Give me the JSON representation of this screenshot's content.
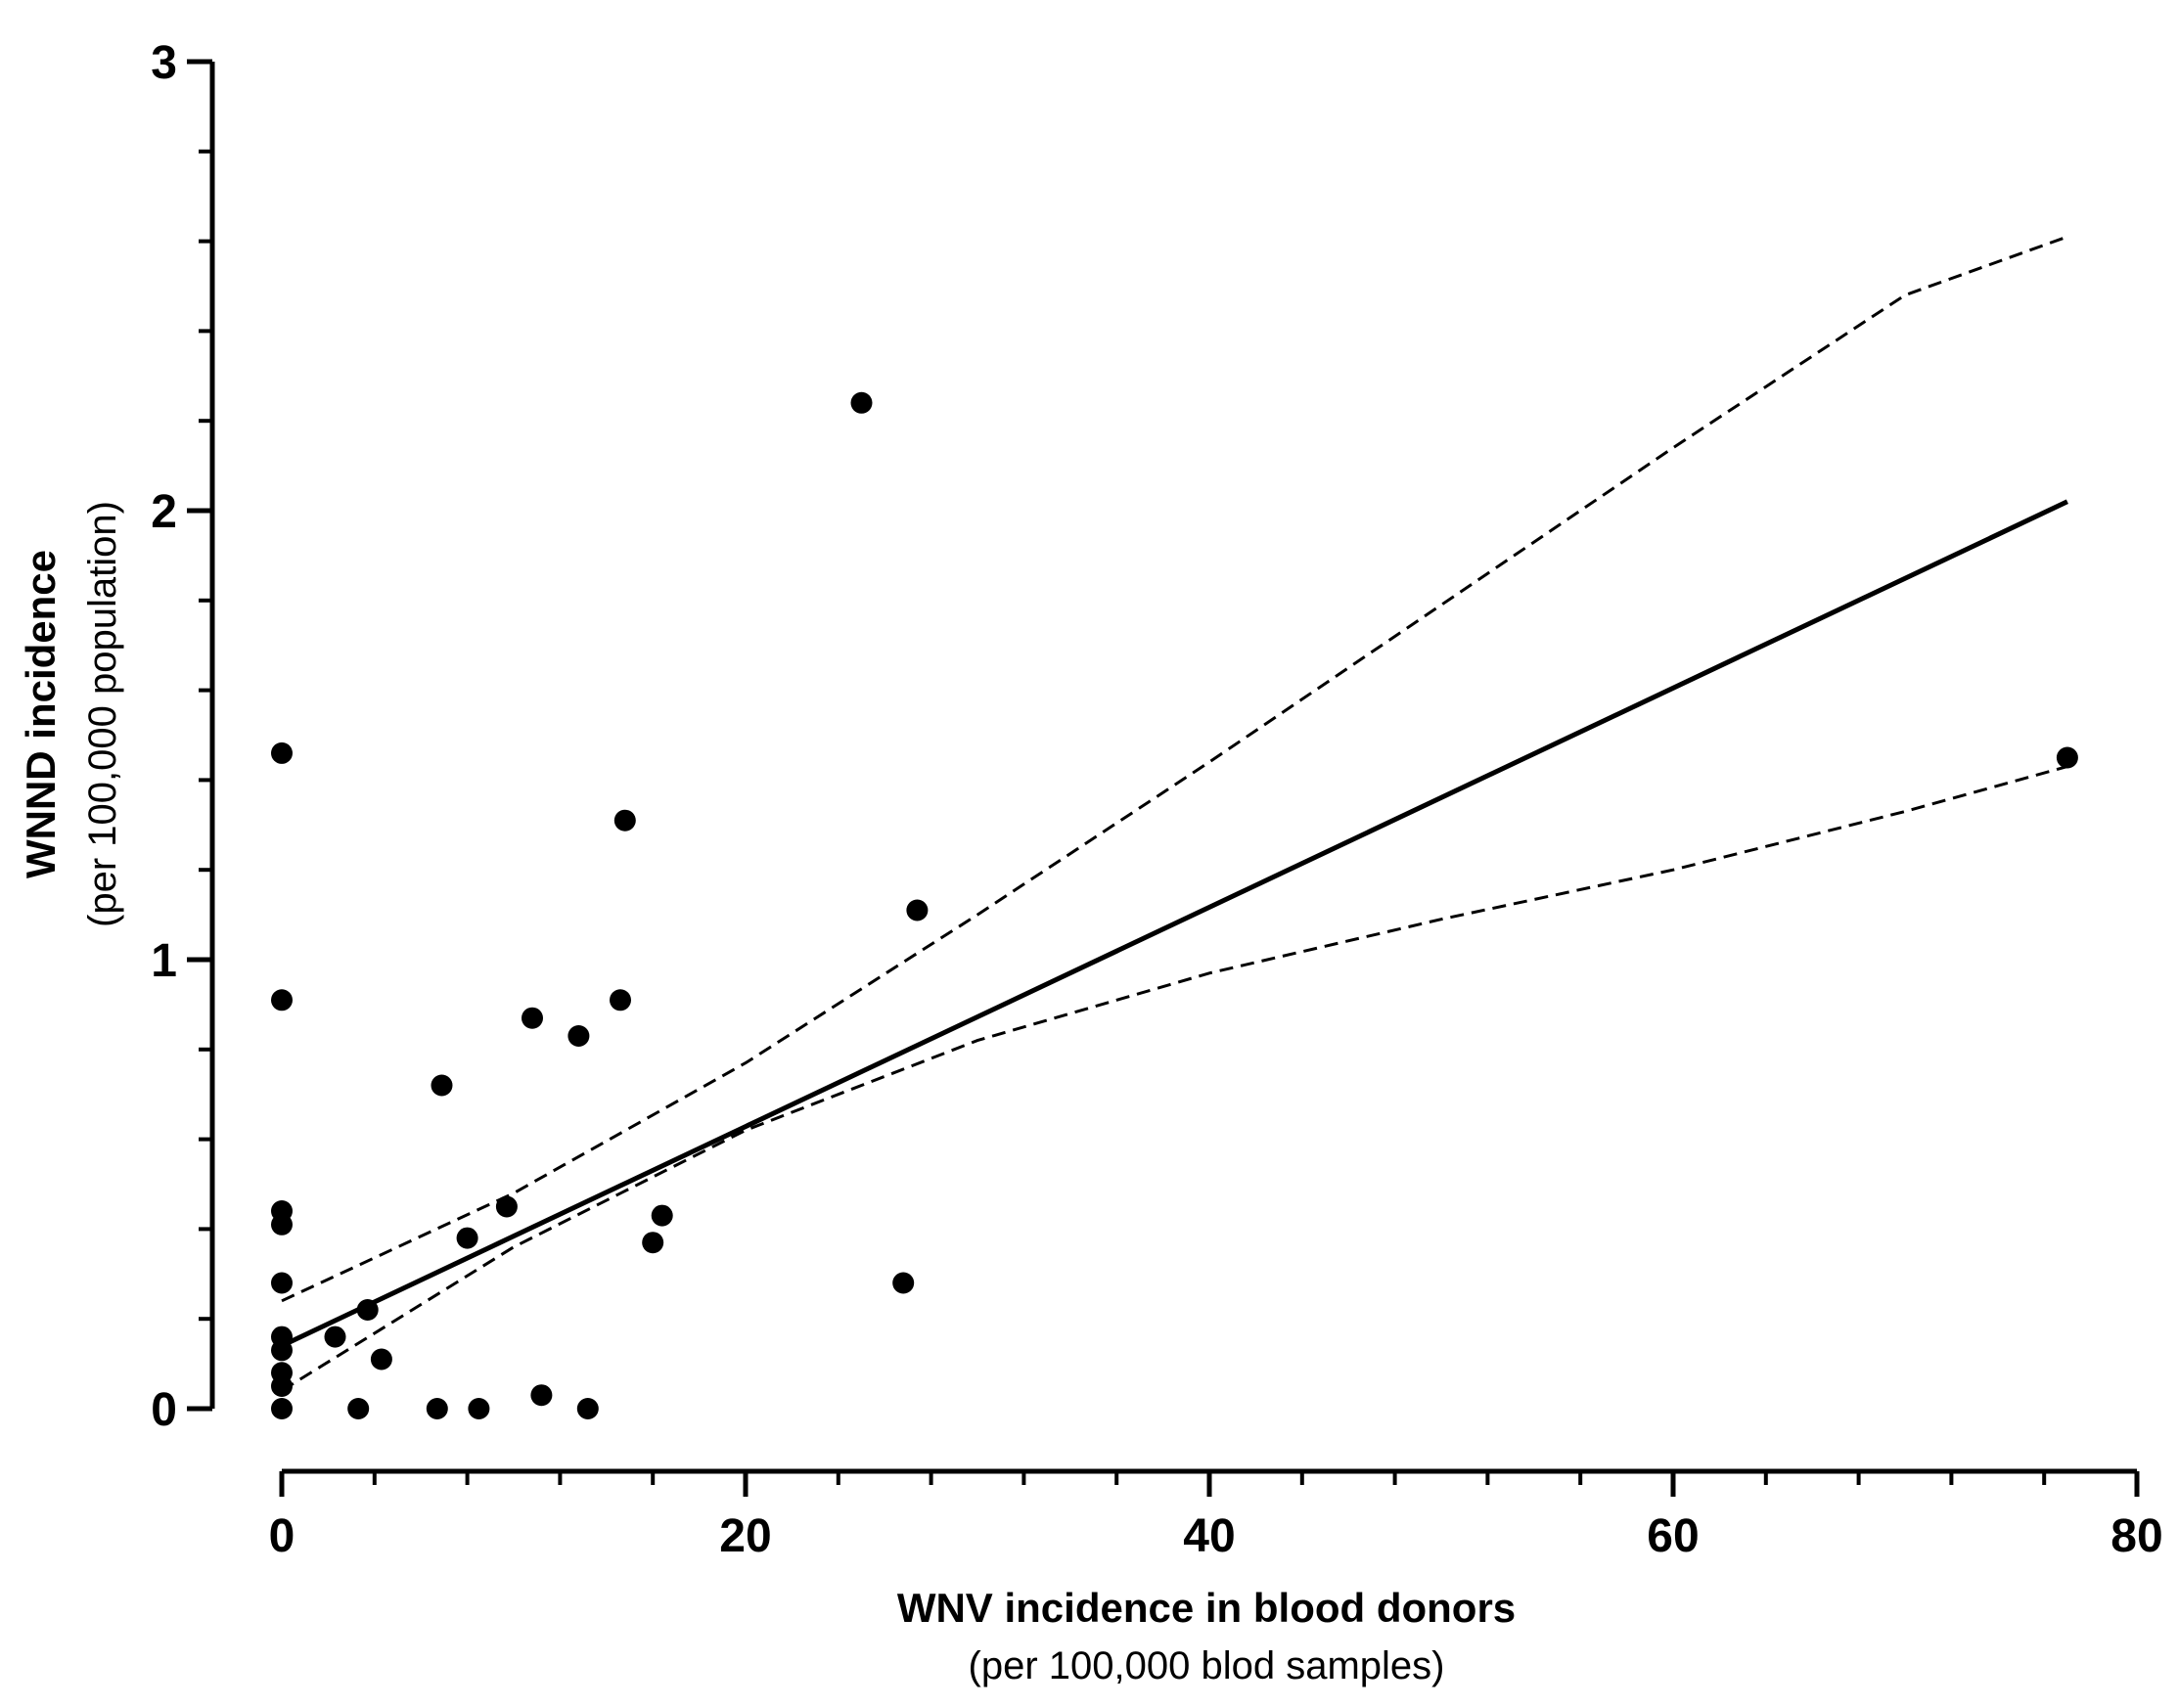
{
  "chart_data": {
    "type": "scatter",
    "title": "",
    "xlabel": "WNV incidence in blood donors",
    "xlabel_sub": "(per 100,000 blod samples)",
    "ylabel": "WNND incidence",
    "ylabel_sub": "(per 100,000 population)",
    "xlim": [
      0,
      80
    ],
    "ylim": [
      0,
      3
    ],
    "x_ticks": [
      "0",
      "20",
      "40",
      "60",
      "80"
    ],
    "y_ticks": [
      "0",
      "1",
      "2",
      "3"
    ],
    "x_tick_values": [
      0,
      20,
      40,
      60,
      80
    ],
    "y_tick_values": [
      0,
      1,
      2,
      3
    ],
    "x_minor_step": 4,
    "y_minor_step": 0.2,
    "grid": false,
    "series": [
      {
        "name": "observations",
        "kind": "points",
        "points": [
          [
            0,
            1.46
          ],
          [
            0,
            0.91
          ],
          [
            0,
            0.44
          ],
          [
            0,
            0.41
          ],
          [
            0,
            0.28
          ],
          [
            0,
            0.16
          ],
          [
            0,
            0.13
          ],
          [
            0,
            0.08
          ],
          [
            0,
            0.05
          ],
          [
            0,
            0.0
          ],
          [
            2.3,
            0.16
          ],
          [
            3.3,
            0.0
          ],
          [
            3.7,
            0.22
          ],
          [
            4.3,
            0.11
          ],
          [
            6.7,
            0.0
          ],
          [
            6.9,
            0.72
          ],
          [
            8.0,
            0.38
          ],
          [
            8.5,
            0.0
          ],
          [
            9.7,
            0.45
          ],
          [
            10.8,
            0.87
          ],
          [
            11.2,
            0.03
          ],
          [
            12.8,
            0.83
          ],
          [
            13.2,
            0.0
          ],
          [
            14.6,
            0.91
          ],
          [
            14.8,
            1.31
          ],
          [
            16.0,
            0.37
          ],
          [
            16.4,
            0.43
          ],
          [
            25.0,
            2.24
          ],
          [
            26.8,
            0.28
          ],
          [
            27.4,
            1.11
          ],
          [
            77.0,
            1.45
          ]
        ]
      },
      {
        "name": "regression line",
        "kind": "line",
        "style": "solid",
        "points": [
          [
            0,
            0.14
          ],
          [
            77,
            2.02
          ]
        ]
      },
      {
        "name": "95% CI upper",
        "kind": "line",
        "style": "dashed",
        "points": [
          [
            0,
            0.24
          ],
          [
            10,
            0.48
          ],
          [
            20,
            0.77
          ],
          [
            30,
            1.1
          ],
          [
            40,
            1.44
          ],
          [
            50,
            1.79
          ],
          [
            60,
            2.14
          ],
          [
            70,
            2.48
          ],
          [
            77,
            2.61
          ]
        ]
      },
      {
        "name": "95% CI lower",
        "kind": "line",
        "style": "dashed",
        "points": [
          [
            0,
            0.04
          ],
          [
            10,
            0.36
          ],
          [
            20,
            0.62
          ],
          [
            30,
            0.82
          ],
          [
            40,
            0.97
          ],
          [
            50,
            1.09
          ],
          [
            60,
            1.2
          ],
          [
            70,
            1.33
          ],
          [
            77,
            1.43
          ]
        ]
      }
    ]
  }
}
